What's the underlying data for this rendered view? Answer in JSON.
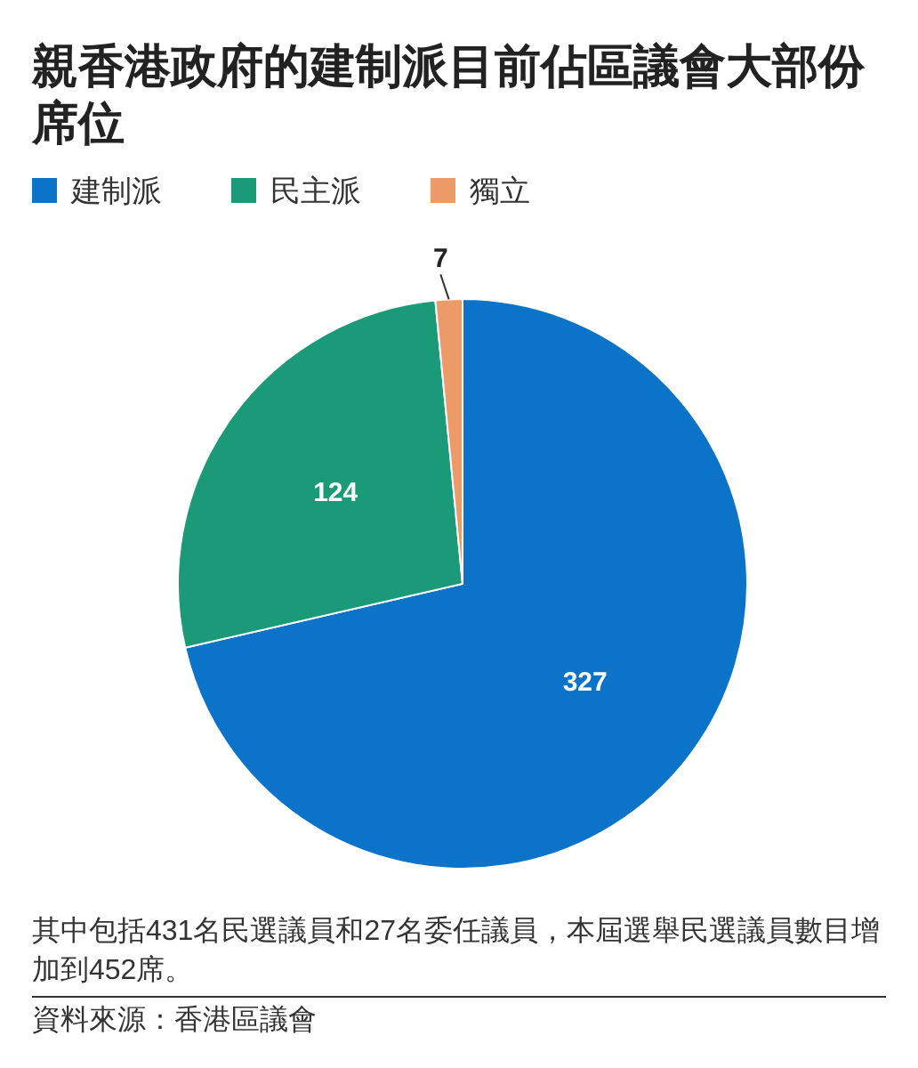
{
  "chart_data": {
    "type": "pie",
    "title": "親香港政府的建制派目前佔區議會大部份席位",
    "categories": [
      "建制派",
      "民主派",
      "獨立"
    ],
    "values": [
      327,
      124,
      7
    ],
    "colors": [
      "#0b73c8",
      "#1b9a77",
      "#ec9b68"
    ],
    "data_labels": true,
    "legend": "top left",
    "annotations": [
      "其中包括431名民選議員和27名委任議員，本屆選舉民選議員數目增加到452席。",
      "資料來源：香港區議會"
    ]
  }
}
